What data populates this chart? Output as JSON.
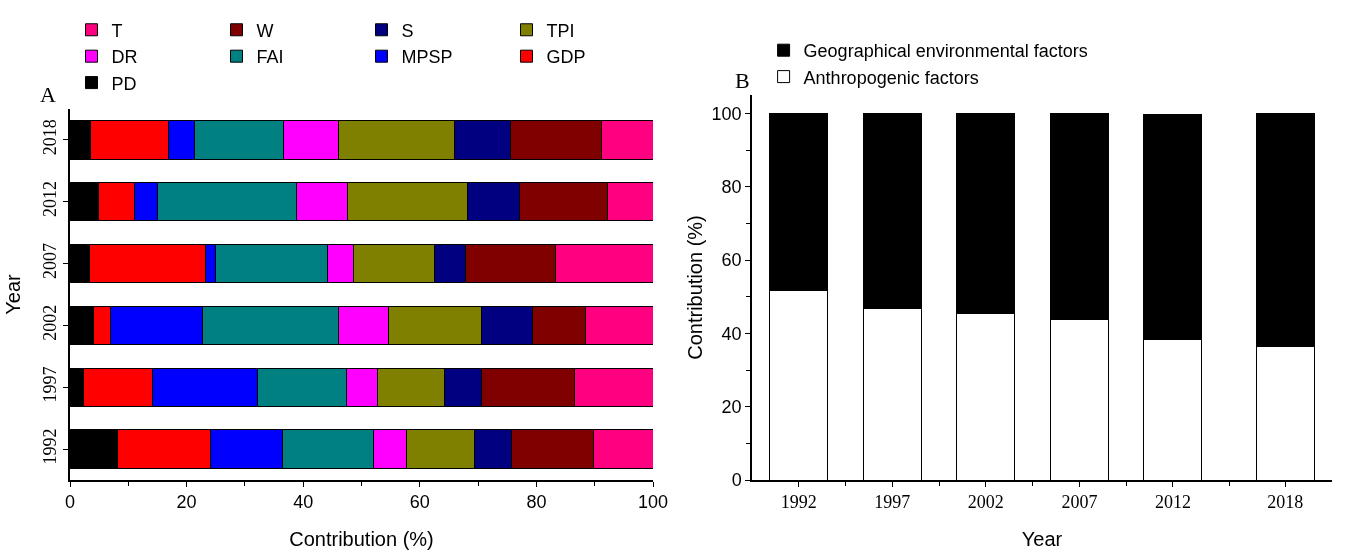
{
  "chart_data": [
    {
      "type": "bar",
      "title": "A",
      "orientation": "horizontal",
      "stacked": true,
      "ylabel": "Year",
      "xlabel": "Contribution (%)",
      "categories": [
        "2018",
        "2012",
        "2007",
        "2002",
        "1997",
        "1992"
      ],
      "xlim": [
        0,
        100
      ],
      "xticks": [
        0,
        20,
        40,
        60,
        80,
        100
      ],
      "grid": false,
      "legend": "top",
      "series": [
        {
          "name": "PD",
          "color": "#000000",
          "values": [
            3.6,
            4.9,
            3.4,
            4.1,
            2.3,
            8.2
          ]
        },
        {
          "name": "GDP",
          "color": "#ff0000",
          "values": [
            13.3,
            6.1,
            19.9,
            2.9,
            11.9,
            15.9
          ]
        },
        {
          "name": "MPSP",
          "color": "#0000ff",
          "values": [
            4.5,
            4.0,
            1.6,
            15.7,
            18.0,
            12.4
          ]
        },
        {
          "name": "FAI",
          "color": "#008080",
          "values": [
            15.3,
            23.9,
            19.2,
            23.3,
            15.2,
            15.6
          ]
        },
        {
          "name": "DR",
          "color": "#ff00ff",
          "values": [
            9.4,
            8.7,
            4.5,
            8.6,
            5.3,
            5.6
          ]
        },
        {
          "name": "TPI",
          "color": "#808000",
          "values": [
            19.8,
            20.6,
            14.0,
            15.9,
            11.6,
            11.7
          ]
        },
        {
          "name": "S",
          "color": "#000080",
          "values": [
            9.7,
            8.9,
            5.2,
            8.9,
            6.3,
            6.4
          ]
        },
        {
          "name": "W",
          "color": "#800000",
          "values": [
            15.6,
            15.1,
            15.4,
            9.1,
            15.9,
            14.0
          ]
        },
        {
          "name": "T",
          "color": "#ff0080",
          "values": [
            8.8,
            7.8,
            16.8,
            11.5,
            13.5,
            10.2
          ]
        }
      ]
    },
    {
      "type": "bar",
      "title": "B",
      "stacked": true,
      "xlabel": "Year",
      "ylabel": "Contribution (%)",
      "x": [
        1992,
        1997,
        2002,
        2007,
        2012,
        2018
      ],
      "xlim": [
        1989.5,
        2020.5
      ],
      "xticks": [
        1992,
        1997,
        2002,
        2007,
        2012,
        2018
      ],
      "ylim": [
        0,
        105
      ],
      "yticks": [
        0,
        20,
        40,
        60,
        80,
        100
      ],
      "grid": false,
      "legend": "top left",
      "series": [
        {
          "name": "Anthropogenic factors",
          "color": "#ffffff",
          "values": [
            51.6,
            46.9,
            45.5,
            43.8,
            38.4,
            36.4
          ]
        },
        {
          "name": "Geographical environmental factors",
          "color": "#000000",
          "values": [
            48.4,
            53.1,
            54.5,
            56.2,
            61.4,
            63.6
          ]
        }
      ]
    }
  ]
}
